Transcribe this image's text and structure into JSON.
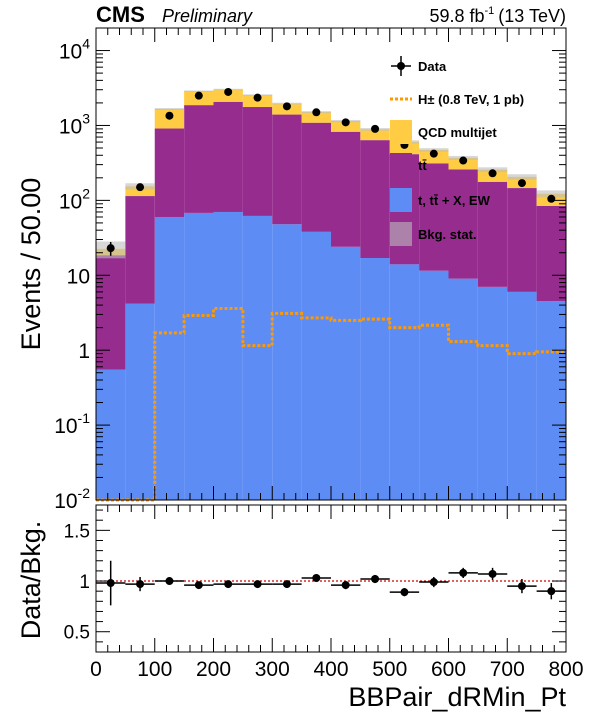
{
  "header": {
    "experiment": "CMS",
    "status": "Preliminary",
    "lumi": "59.8 fb",
    "lumi_exp": "-1",
    "energy": "(13 TeV)"
  },
  "colors": {
    "qcd": "#ffcc44",
    "ttbar": "#962c8e",
    "ew": "#5d8cf5",
    "stat": "#bdbdbd",
    "signal": "#ff9900",
    "data": "#000000",
    "unity": "#cc0000"
  },
  "chart_data": [
    {
      "type": "bar",
      "stacked": true,
      "log_y": true,
      "ylabel": "Events / 50.00",
      "ylim": [
        0.01,
        20000
      ],
      "xlim": [
        0,
        800
      ],
      "bin_edges": [
        0,
        50,
        100,
        150,
        200,
        250,
        300,
        350,
        400,
        450,
        500,
        550,
        600,
        650,
        700,
        750,
        800
      ],
      "y_ticks": [
        {
          "value": 0.01,
          "base": "10",
          "exp": "-2"
        },
        {
          "value": 0.1,
          "base": "10",
          "exp": "-1"
        },
        {
          "value": 1,
          "base": "1",
          "exp": ""
        },
        {
          "value": 10,
          "base": "10",
          "exp": ""
        },
        {
          "value": 100,
          "base": "10",
          "exp": "2"
        },
        {
          "value": 1000,
          "base": "10",
          "exp": "3"
        },
        {
          "value": 10000,
          "base": "10",
          "exp": "4"
        }
      ],
      "series": [
        {
          "name": "t, t̄ + X, EW",
          "key": "ew",
          "values": [
            0.55,
            4.2,
            60,
            68,
            70,
            62,
            48,
            38,
            24,
            17,
            14,
            11.5,
            9,
            7,
            6,
            4.5
          ]
        },
        {
          "name": "tt̄",
          "key": "ttbar",
          "values": [
            18,
            110,
            850,
            1800,
            2000,
            1700,
            1350,
            1050,
            800,
            620,
            400,
            300,
            250,
            170,
            140,
            80
          ]
        },
        {
          "name": "QCD multijet",
          "key": "qcd",
          "values": [
            4,
            40,
            750,
            1000,
            950,
            780,
            560,
            420,
            320,
            250,
            190,
            160,
            110,
            80,
            60,
            38
          ]
        }
      ],
      "signal": {
        "name": "H± (0.8 TeV, 1 pb)",
        "values": [
          0.01,
          0.01,
          1.7,
          2.9,
          3.6,
          1.15,
          3.1,
          2.7,
          2.5,
          2.6,
          2.0,
          2.15,
          1.3,
          1.15,
          0.9,
          0.95
        ]
      },
      "data": {
        "name": "Data",
        "values": [
          23,
          150,
          1350,
          2500,
          2800,
          2350,
          1800,
          1500,
          1100,
          900,
          550,
          420,
          340,
          230,
          170,
          105
        ]
      },
      "stat_band": {
        "name": "Bkg. stat."
      },
      "legend": [
        {
          "label": "Data",
          "kind": "data"
        },
        {
          "label": "H± (0.8 TeV, 1 pb)",
          "kind": "signal"
        },
        {
          "label": "QCD multijet",
          "kind": "qcd"
        },
        {
          "label": "tt̄",
          "kind": "ttbar"
        },
        {
          "label": "t, tt̄ + X, EW",
          "kind": "ew"
        },
        {
          "label": "Bkg. stat.",
          "kind": "stat"
        }
      ],
      "legend_position": "top-right"
    },
    {
      "type": "scatter",
      "ylabel": "Data/Bkg.",
      "xlabel": "BBPair_dRMin_Pt",
      "ylim": [
        0.3,
        1.75
      ],
      "xlim": [
        0,
        800
      ],
      "x_ticks": [
        0,
        100,
        200,
        300,
        400,
        500,
        600,
        700,
        800
      ],
      "y_ticks": [
        0.5,
        1,
        1.5
      ],
      "x": [
        25,
        75,
        125,
        175,
        225,
        275,
        325,
        375,
        425,
        475,
        525,
        575,
        625,
        675,
        725,
        775
      ],
      "y": [
        0.98,
        0.97,
        1.0,
        0.96,
        0.97,
        0.97,
        0.97,
        1.03,
        0.96,
        1.02,
        0.89,
        0.99,
        1.08,
        1.07,
        0.95,
        0.9
      ],
      "yerr": [
        0.22,
        0.07,
        0.03,
        0.03,
        0.03,
        0.03,
        0.03,
        0.03,
        0.04,
        0.04,
        0.04,
        0.05,
        0.05,
        0.06,
        0.07,
        0.08
      ],
      "reference": 1
    }
  ]
}
